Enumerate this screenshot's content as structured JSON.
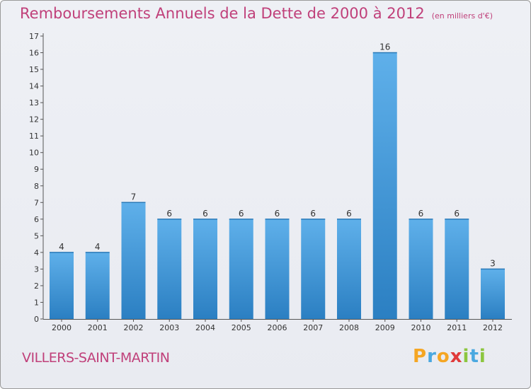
{
  "chart_data": {
    "type": "bar",
    "title": "Remboursements Annuels de la Dette de 2000 à 2012",
    "unit_note": "(en milliers d'€)",
    "categories": [
      "2000",
      "2001",
      "2002",
      "2003",
      "2004",
      "2005",
      "2006",
      "2007",
      "2008",
      "2009",
      "2010",
      "2011",
      "2012"
    ],
    "values": [
      4,
      4,
      7,
      6,
      6,
      6,
      6,
      6,
      6,
      16,
      6,
      6,
      3
    ],
    "ylim": [
      0,
      17
    ],
    "yticks": [
      0,
      1,
      2,
      3,
      4,
      5,
      6,
      7,
      8,
      9,
      10,
      11,
      12,
      13,
      14,
      15,
      16,
      17
    ],
    "grid": false,
    "bar_color": "#3f97d8",
    "title_color": "#c0407a"
  },
  "footer": {
    "town": "VILLERS-SAINT-MARTIN",
    "logo": [
      "P",
      "r",
      "o",
      "x",
      "i",
      "t",
      "i"
    ]
  }
}
